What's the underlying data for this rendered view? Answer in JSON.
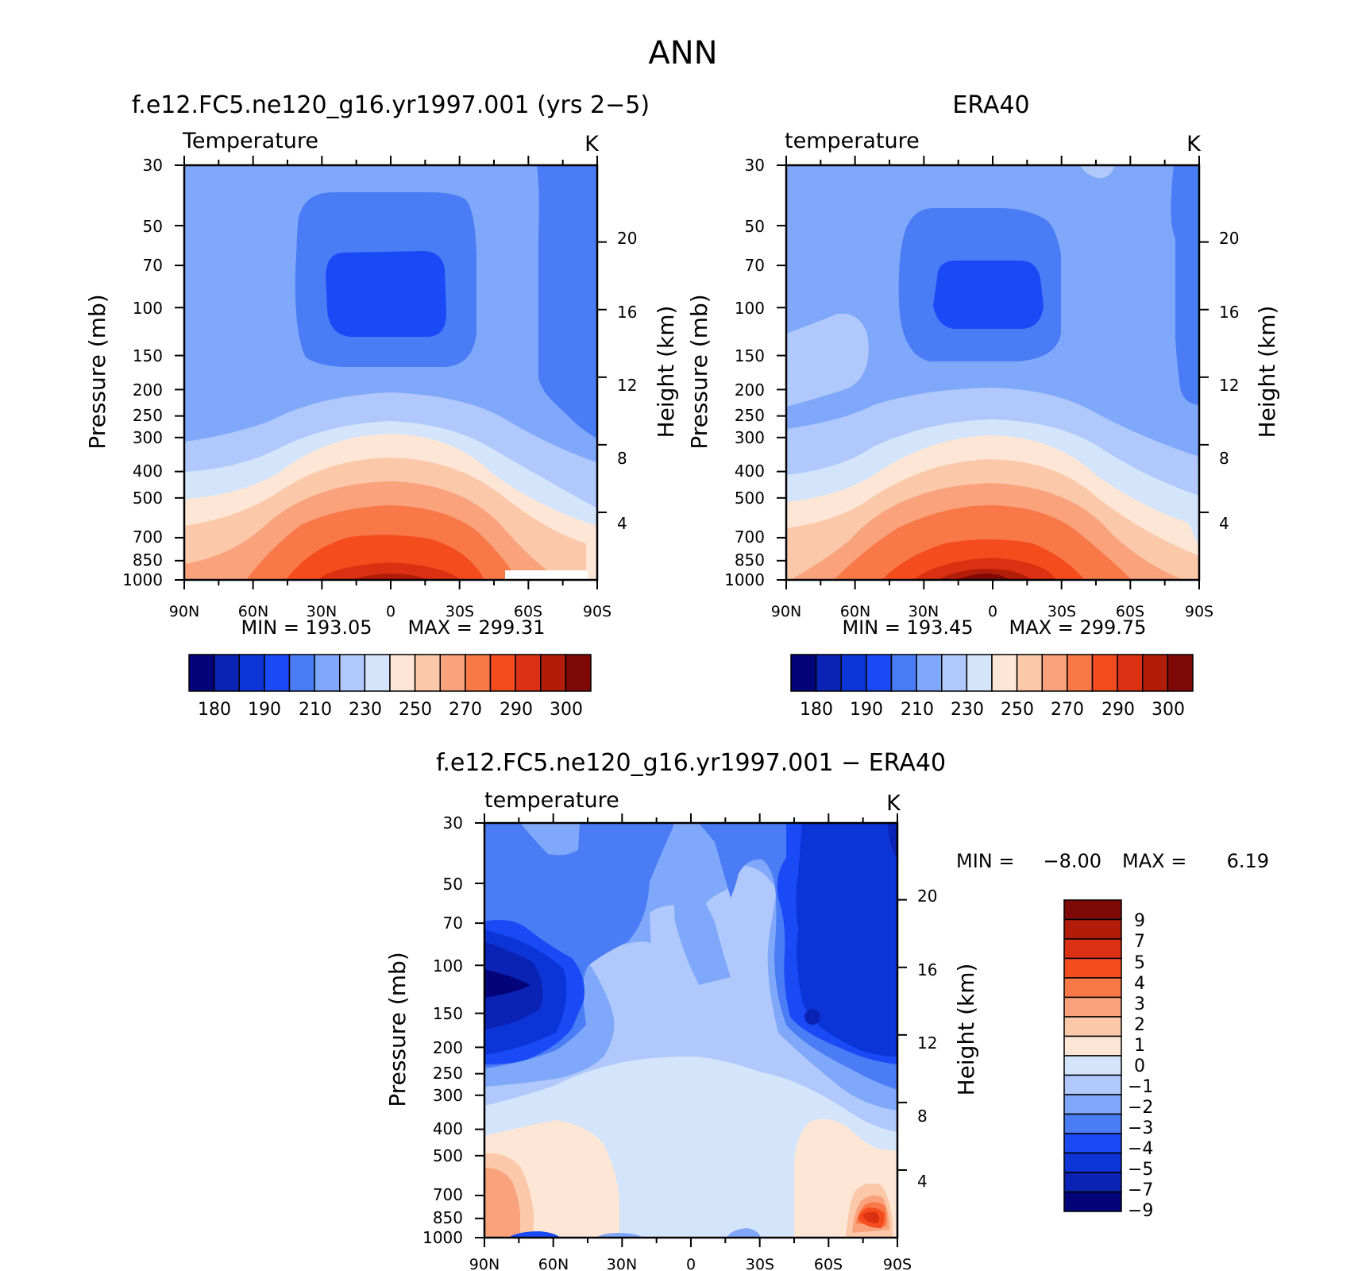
{
  "page_title": "ANN",
  "chart_data": [
    {
      "type": "contour",
      "id": "model",
      "title": "f.e12.FC5.ne120_g16.yr1997.001 (yrs 2−5)",
      "variable": "Temperature",
      "units": "K",
      "ylabel": "Pressure (mb)",
      "ylabel2": "Height (km)",
      "x_ticks": [
        "90N",
        "60N",
        "30N",
        "0",
        "30S",
        "60S",
        "90S"
      ],
      "y_ticks": [
        "30",
        "50",
        "70",
        "100",
        "150",
        "200",
        "250",
        "300",
        "400",
        "500",
        "700",
        "850",
        "1000"
      ],
      "y_values": [
        30,
        50,
        70,
        100,
        150,
        200,
        250,
        300,
        400,
        500,
        700,
        850,
        1000
      ],
      "height_ticks": [
        "20",
        "16",
        "12",
        "8",
        "4"
      ],
      "min_label": "MIN = 193.05",
      "max_label": "MAX = 299.31",
      "min": 193.05,
      "max": 299.31,
      "colorbar_labels": [
        "180",
        "190",
        "210",
        "230",
        "250",
        "270",
        "290",
        "300"
      ],
      "colorbar_levels": [
        180,
        185,
        190,
        200,
        210,
        220,
        230,
        240,
        250,
        260,
        270,
        280,
        290,
        295,
        300
      ]
    },
    {
      "type": "contour",
      "id": "obs",
      "title": "ERA40",
      "variable": "temperature",
      "units": "K",
      "ylabel": "Pressure (mb)",
      "ylabel2": "Height (km)",
      "x_ticks": [
        "90N",
        "60N",
        "30N",
        "0",
        "30S",
        "60S",
        "90S"
      ],
      "y_ticks": [
        "30",
        "50",
        "70",
        "100",
        "150",
        "200",
        "250",
        "300",
        "400",
        "500",
        "700",
        "850",
        "1000"
      ],
      "y_values": [
        30,
        50,
        70,
        100,
        150,
        200,
        250,
        300,
        400,
        500,
        700,
        850,
        1000
      ],
      "height_ticks": [
        "20",
        "16",
        "12",
        "8",
        "4"
      ],
      "min_label": "MIN = 193.45",
      "max_label": "MAX = 299.75",
      "min": 193.45,
      "max": 299.75,
      "colorbar_labels": [
        "180",
        "190",
        "210",
        "230",
        "250",
        "270",
        "290",
        "300"
      ],
      "colorbar_levels": [
        180,
        185,
        190,
        200,
        210,
        220,
        230,
        240,
        250,
        260,
        270,
        280,
        290,
        295,
        300
      ]
    },
    {
      "type": "contour",
      "id": "diff",
      "title": "f.e12.FC5.ne120_g16.yr1997.001 − ERA40",
      "variable": "temperature",
      "units": "K",
      "ylabel": "Pressure (mb)",
      "ylabel2": "Height (km)",
      "x_ticks": [
        "90N",
        "60N",
        "30N",
        "0",
        "30S",
        "60S",
        "90S"
      ],
      "y_ticks": [
        "30",
        "50",
        "70",
        "100",
        "150",
        "200",
        "250",
        "300",
        "400",
        "500",
        "700",
        "850",
        "1000"
      ],
      "y_values": [
        30,
        50,
        70,
        100,
        150,
        200,
        250,
        300,
        400,
        500,
        700,
        850,
        1000
      ],
      "height_ticks": [
        "20",
        "16",
        "12",
        "8",
        "4"
      ],
      "min_label": "MIN =",
      "min_value": "−8.00",
      "max_label": "MAX =",
      "max_value": "6.19",
      "min": -8.0,
      "max": 6.19,
      "colorbar_labels": [
        "9",
        "7",
        "5",
        "4",
        "3",
        "2",
        "1",
        "0",
        "−1",
        "−2",
        "−3",
        "−4",
        "−5",
        "−7",
        "−9"
      ],
      "colorbar_levels": [
        -9,
        -7,
        -5,
        -4,
        -3,
        -2,
        -1,
        0,
        1,
        2,
        3,
        4,
        5,
        7,
        9
      ]
    }
  ],
  "colors": {
    "temperature_scale": [
      "#03037a",
      "#0b23b4",
      "#0c35d8",
      "#1a4af6",
      "#4a7cf6",
      "#80a8fa",
      "#b0c8fb",
      "#d4e5fb",
      "#fde6d5",
      "#fbc8a9",
      "#f9a27c",
      "#f87848",
      "#f54c1e",
      "#dc3012",
      "#b21d09",
      "#7f0907"
    ],
    "difference_scale": [
      "#03037a",
      "#0b23b4",
      "#0c35d8",
      "#1a4af6",
      "#4a7cf6",
      "#80a8fa",
      "#b0c8fb",
      "#d4e5fb",
      "#fde6d5",
      "#fbc8a9",
      "#f9a27c",
      "#f87848",
      "#f54c1e",
      "#dc3012",
      "#b21d09",
      "#7f0907"
    ]
  }
}
